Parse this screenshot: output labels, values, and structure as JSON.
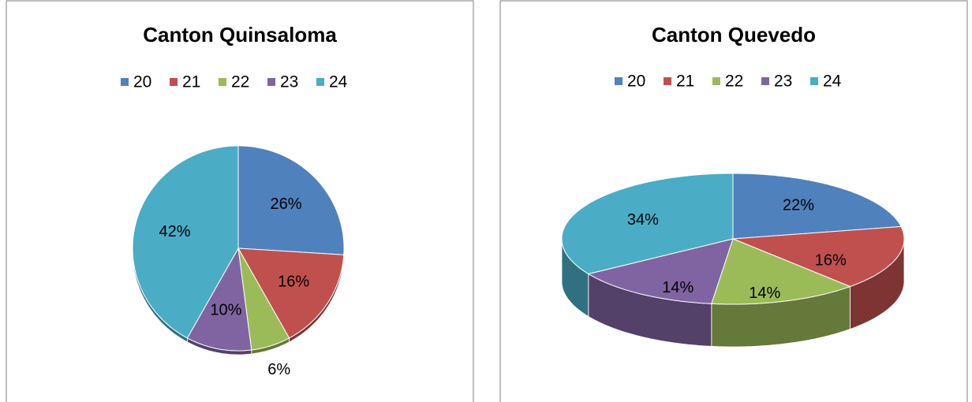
{
  "chart_data": [
    {
      "type": "pie",
      "title": "Canton Quinsaloma",
      "categories": [
        "20",
        "21",
        "22",
        "23",
        "24"
      ],
      "values": [
        26,
        16,
        6,
        10,
        42
      ],
      "value_labels": [
        "26%",
        "16%",
        "6%",
        "10%",
        "42%"
      ],
      "colors": [
        "#4f81bd",
        "#c0504d",
        "#9bbb59",
        "#8064a2",
        "#4bacc6"
      ],
      "legend": "top"
    },
    {
      "type": "pie",
      "title": "Canton Quevedo",
      "categories": [
        "20",
        "21",
        "22",
        "23",
        "24"
      ],
      "values": [
        22,
        16,
        14,
        14,
        34
      ],
      "value_labels": [
        "22%",
        "16%",
        "14%",
        "14%",
        "34%"
      ],
      "colors": [
        "#4f81bd",
        "#c0504d",
        "#9bbb59",
        "#8064a2",
        "#4bacc6"
      ],
      "legend": "top"
    }
  ]
}
